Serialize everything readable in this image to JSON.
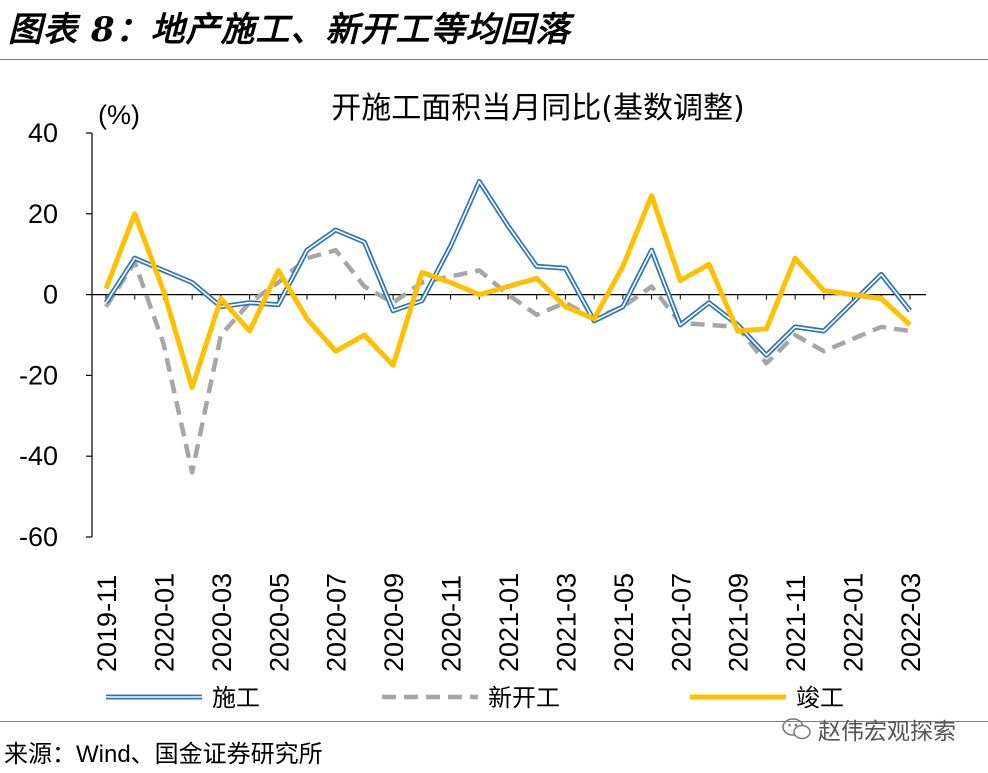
{
  "figure_title": "图表 8：地产施工、新开工等均回落",
  "source_text": "来源：Wind、国金证券研究所",
  "watermark_text": "赵伟宏观探索",
  "colors": {
    "accent_rule": "#1f9bd7",
    "construction": "#2e75b6",
    "new_starts": "#a6a6a6",
    "completions": "#ffc000"
  },
  "chart_data": {
    "type": "line",
    "title": "开施工面积当月同比(基数调整)",
    "ylabel": "(%)",
    "xlabel": "",
    "ylim": [
      -60,
      40
    ],
    "yticks": [
      "40",
      "20",
      "0",
      "-20",
      "-40",
      "-60"
    ],
    "grid": false,
    "legend_position": "bottom",
    "x": [
      "2019-11",
      "2019-12",
      "2020-01",
      "2020-02",
      "2020-03",
      "2020-04",
      "2020-05",
      "2020-06",
      "2020-07",
      "2020-08",
      "2020-09",
      "2020-10",
      "2020-11",
      "2020-12",
      "2021-01",
      "2021-02",
      "2021-03",
      "2021-04",
      "2021-05",
      "2021-06",
      "2021-07",
      "2021-08",
      "2021-09",
      "2021-10",
      "2021-11",
      "2021-12",
      "2022-01",
      "2022-02",
      "2022-03"
    ],
    "x_tick_labels": [
      "2019-11",
      "2020-01",
      "2020-03",
      "2020-05",
      "2020-07",
      "2020-09",
      "2020-11",
      "2021-01",
      "2021-03",
      "2021-05",
      "2021-07",
      "2021-09",
      "2021-11",
      "2022-01",
      "2022-03"
    ],
    "series": [
      {
        "name": "施工",
        "style": "double-blue",
        "values": [
          -2,
          9,
          6,
          3,
          -3,
          -2,
          -2.5,
          11,
          16,
          13,
          -4,
          -1.5,
          12,
          28,
          17,
          7,
          6.5,
          -6.5,
          -3,
          11,
          -7.5,
          -2,
          -7.5,
          -15,
          -8,
          -9,
          -2,
          5,
          -4
        ]
      },
      {
        "name": "新开工",
        "style": "dashed-gray",
        "values": [
          -3,
          8,
          -12,
          -44,
          -10,
          -2,
          3,
          9,
          11,
          2,
          -2,
          3,
          4.5,
          6,
          0,
          -5,
          -2,
          -6,
          -3,
          2,
          -7,
          -7.5,
          -8,
          -17,
          -10,
          -14,
          -11,
          -8,
          -9
        ]
      },
      {
        "name": "竣工",
        "style": "solid-yellow",
        "values": [
          1.5,
          20,
          1,
          -23,
          -1,
          -9,
          6,
          -6,
          -14,
          -10,
          -17.5,
          5.5,
          3,
          0,
          2,
          4,
          -3,
          -6,
          7,
          24.5,
          3.5,
          7.5,
          -9,
          -8.5,
          9,
          1,
          0,
          -1,
          -7.5
        ]
      }
    ]
  }
}
